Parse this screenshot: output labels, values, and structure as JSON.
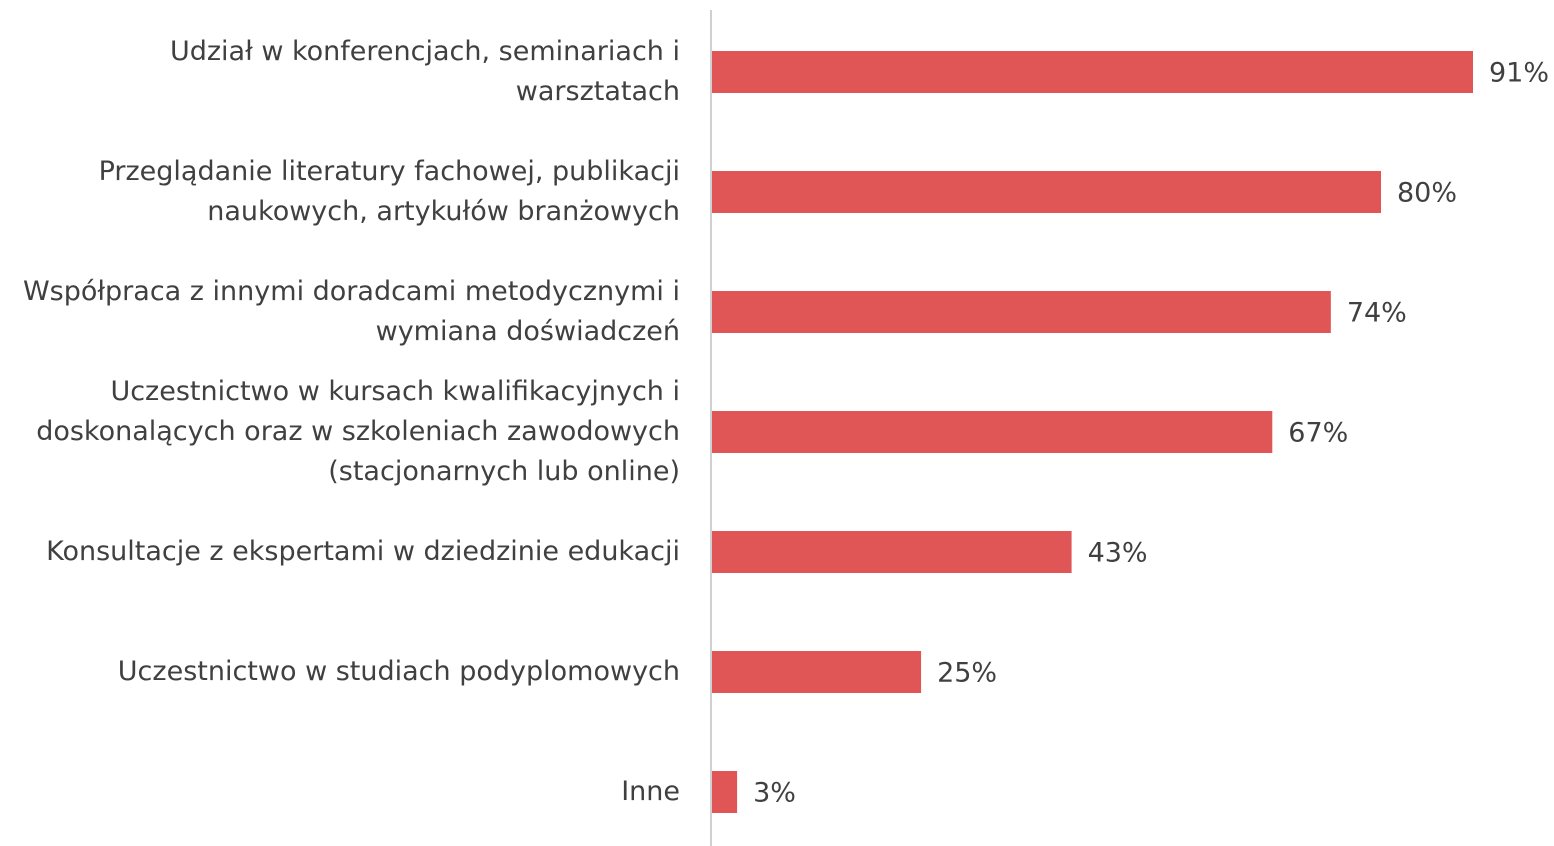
{
  "chart_data": {
    "type": "bar",
    "orientation": "horizontal",
    "categories": [
      "Udział w konferencjach, seminariach i warsztatach",
      "Przeglądanie literatury fachowej, publikacji naukowych, artykułów branżowych",
      "Współpraca z innymi doradcami metodycznymi i wymiana doświadczeń",
      "Uczestnictwo w kursach kwalifikacyjnych i doskonalących oraz w szkoleniach zawodowych (stacjonarnych lub online)",
      "Konsultacje z ekspertami w dziedzinie edukacji",
      "Uczestnictwo w studiach podyplomowych",
      "Inne"
    ],
    "values": [
      91,
      80,
      74,
      67,
      43,
      25,
      3
    ],
    "value_labels": [
      "91%",
      "80%",
      "74%",
      "67%",
      "43%",
      "25%",
      "3%"
    ],
    "color": "#e05555"
  }
}
